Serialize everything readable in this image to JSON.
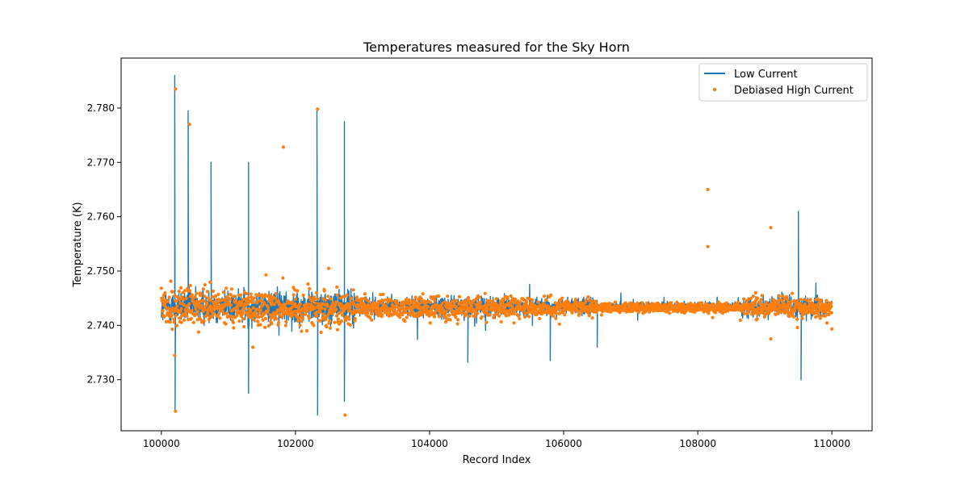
{
  "chart_data": {
    "type": "line",
    "title": "Temperatures measured for the Sky Horn",
    "xlabel": "Record Index",
    "ylabel": "Temperature (K)",
    "xlim": [
      99400,
      110600
    ],
    "ylim": [
      2.7206,
      2.7892
    ],
    "x_ticks": [
      100000,
      102000,
      104000,
      106000,
      108000,
      110000
    ],
    "x_tick_labels": [
      "100000",
      "102000",
      "104000",
      "106000",
      "108000",
      "110000"
    ],
    "y_ticks": [
      2.73,
      2.74,
      2.75,
      2.76,
      2.77,
      2.78
    ],
    "y_tick_labels": [
      "2.730",
      "2.740",
      "2.750",
      "2.760",
      "2.770",
      "2.780"
    ],
    "grid": false,
    "legend_position": "upper right",
    "series": [
      {
        "name": "Low Current",
        "kind": "line",
        "color": "#1f77b4",
        "baseline": 2.7435,
        "notable_peaks": [
          {
            "x": 100200,
            "y": 2.786
          },
          {
            "x": 100205,
            "y": 2.7242
          },
          {
            "x": 100400,
            "y": 2.7795
          },
          {
            "x": 100740,
            "y": 2.77
          },
          {
            "x": 101300,
            "y": 2.77
          },
          {
            "x": 101300,
            "y": 2.7275
          },
          {
            "x": 102320,
            "y": 2.78
          },
          {
            "x": 102330,
            "y": 2.7235
          },
          {
            "x": 102730,
            "y": 2.7775
          },
          {
            "x": 102730,
            "y": 2.726
          },
          {
            "x": 104570,
            "y": 2.7332
          },
          {
            "x": 105800,
            "y": 2.7335
          },
          {
            "x": 106500,
            "y": 2.736
          },
          {
            "x": 109500,
            "y": 2.761
          },
          {
            "x": 109540,
            "y": 2.73
          }
        ]
      },
      {
        "name": "Debiased High Current",
        "kind": "scatter",
        "color": "#ff7f0e",
        "baseline": 2.7432,
        "notable_points": [
          {
            "x": 100210,
            "y": 2.7835
          },
          {
            "x": 100210,
            "y": 2.7242
          },
          {
            "x": 100420,
            "y": 2.777
          },
          {
            "x": 101820,
            "y": 2.7728
          },
          {
            "x": 102330,
            "y": 2.7798
          },
          {
            "x": 102740,
            "y": 2.7235
          },
          {
            "x": 108150,
            "y": 2.765
          },
          {
            "x": 108150,
            "y": 2.7545
          },
          {
            "x": 109090,
            "y": 2.758
          },
          {
            "x": 109090,
            "y": 2.7375
          }
        ]
      }
    ]
  }
}
